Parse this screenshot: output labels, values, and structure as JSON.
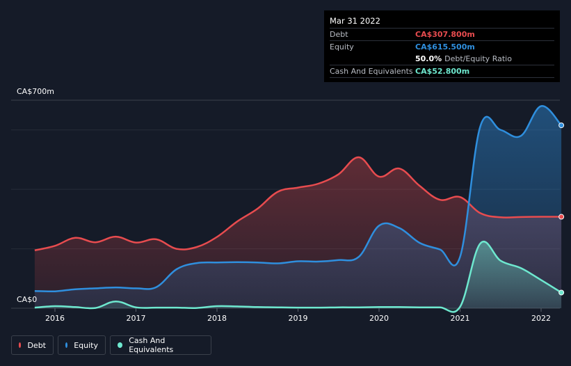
{
  "tooltip": {
    "date": "Mar 31 2022",
    "debt_label": "Debt",
    "debt_value": "CA$307.800m",
    "equity_label": "Equity",
    "equity_value": "CA$615.500m",
    "ratio_pct": "50.0%",
    "ratio_label": "Debt/Equity Ratio",
    "cash_label": "Cash And Equivalents",
    "cash_value": "CA$52.800m"
  },
  "colors": {
    "debt": "#e84c4f",
    "equity": "#2f8fde",
    "cash": "#6ee8cf",
    "background": "#151b28",
    "grid": "#2f3542"
  },
  "chart_data": {
    "type": "area",
    "y_unit": "CA$m",
    "ylim": [
      0,
      700
    ],
    "y_tick_labels": [
      "CA$0",
      "CA$700m"
    ],
    "x_tick_labels": [
      "2016",
      "2017",
      "2018",
      "2019",
      "2020",
      "2021",
      "2022"
    ],
    "grid": true,
    "legend_position": "bottom-left",
    "series": [
      {
        "name": "Debt",
        "color": "#e84c4f",
        "points": [
          [
            2015.75,
            195
          ],
          [
            2016.0,
            210
          ],
          [
            2016.25,
            237
          ],
          [
            2016.5,
            222
          ],
          [
            2016.75,
            241
          ],
          [
            2017.0,
            221
          ],
          [
            2017.25,
            232
          ],
          [
            2017.5,
            200
          ],
          [
            2017.75,
            206
          ],
          [
            2018.0,
            240
          ],
          [
            2018.25,
            292
          ],
          [
            2018.5,
            335
          ],
          [
            2018.75,
            392
          ],
          [
            2019.0,
            406
          ],
          [
            2019.25,
            419
          ],
          [
            2019.5,
            451
          ],
          [
            2019.75,
            508
          ],
          [
            2020.0,
            443
          ],
          [
            2020.25,
            470
          ],
          [
            2020.5,
            412
          ],
          [
            2020.75,
            365
          ],
          [
            2021.0,
            374
          ],
          [
            2021.25,
            320
          ],
          [
            2021.5,
            306
          ],
          [
            2021.75,
            307
          ],
          [
            2022.0,
            307.8
          ],
          [
            2022.25,
            307.8
          ]
        ]
      },
      {
        "name": "Equity",
        "color": "#2f8fde",
        "points": [
          [
            2015.75,
            58
          ],
          [
            2016.0,
            57
          ],
          [
            2016.25,
            64
          ],
          [
            2016.5,
            67
          ],
          [
            2016.75,
            70
          ],
          [
            2017.0,
            67
          ],
          [
            2017.25,
            71
          ],
          [
            2017.5,
            131
          ],
          [
            2017.75,
            152
          ],
          [
            2018.0,
            154
          ],
          [
            2018.25,
            155
          ],
          [
            2018.5,
            154
          ],
          [
            2018.75,
            151
          ],
          [
            2019.0,
            158
          ],
          [
            2019.25,
            157
          ],
          [
            2019.5,
            162
          ],
          [
            2019.75,
            173
          ],
          [
            2020.0,
            278
          ],
          [
            2020.25,
            270
          ],
          [
            2020.5,
            220
          ],
          [
            2020.75,
            198
          ],
          [
            2021.0,
            173
          ],
          [
            2021.25,
            612
          ],
          [
            2021.5,
            600
          ],
          [
            2021.75,
            580
          ],
          [
            2022.0,
            680
          ],
          [
            2022.25,
            615.5
          ]
        ]
      },
      {
        "name": "Cash And Equivalents",
        "color": "#6ee8cf",
        "points": [
          [
            2015.75,
            2
          ],
          [
            2016.0,
            7
          ],
          [
            2016.25,
            4
          ],
          [
            2016.5,
            1
          ],
          [
            2016.75,
            23
          ],
          [
            2017.0,
            3
          ],
          [
            2017.25,
            2
          ],
          [
            2017.5,
            2
          ],
          [
            2017.75,
            1
          ],
          [
            2018.0,
            7
          ],
          [
            2018.25,
            6
          ],
          [
            2018.5,
            4
          ],
          [
            2018.75,
            3
          ],
          [
            2019.0,
            2
          ],
          [
            2019.25,
            2
          ],
          [
            2019.5,
            3
          ],
          [
            2019.75,
            3
          ],
          [
            2020.0,
            4
          ],
          [
            2020.25,
            4
          ],
          [
            2020.5,
            3
          ],
          [
            2020.75,
            3
          ],
          [
            2021.0,
            5
          ],
          [
            2021.25,
            218
          ],
          [
            2021.5,
            160
          ],
          [
            2021.75,
            135
          ],
          [
            2022.0,
            95
          ],
          [
            2022.25,
            52.8
          ]
        ]
      }
    ]
  },
  "legend": {
    "debt_label": "Debt",
    "equity_label": "Equity",
    "cash_label": "Cash And Equivalents"
  }
}
